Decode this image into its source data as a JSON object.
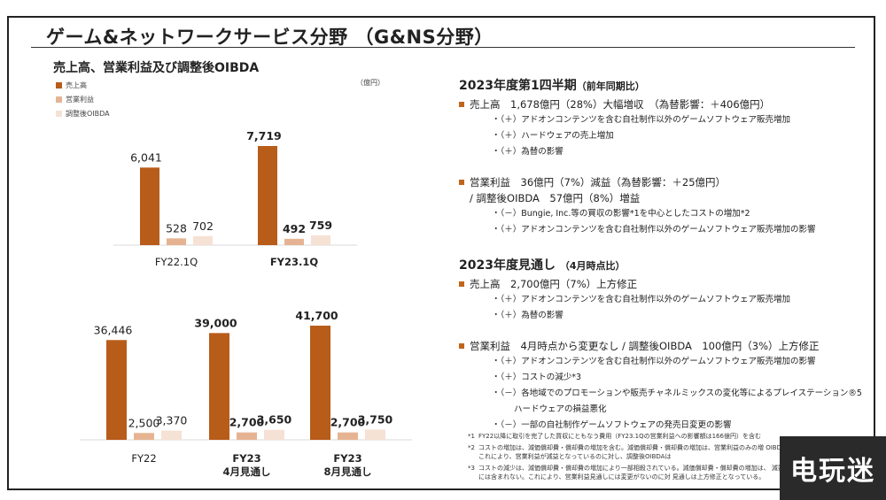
{
  "title": "ゲーム&ネットワークサービス分野 （G&NS分野）",
  "chart_title": "売上高、営業利益及び調整後OIBDA",
  "unit": "（億円）",
  "colors": {
    "sales": "#b85c1a",
    "op_income": "#e6b392",
    "oibda": "#f6e1d5",
    "bullet": "#c0651c"
  },
  "chart_data": [
    {
      "type": "bar",
      "categories": [
        "FY22.1Q",
        "FY23.1Q"
      ],
      "series": [
        {
          "name": "売上高",
          "values": [
            6041,
            7719
          ]
        },
        {
          "name": "営業利益",
          "values": [
            528,
            492
          ]
        },
        {
          "name": "調整後OIBDA",
          "values": [
            702,
            759
          ]
        }
      ],
      "data_labels": [
        [
          "6,041",
          "528",
          "702"
        ],
        [
          "7,719",
          "492",
          "759"
        ]
      ],
      "legend": "top-left",
      "grid": false
    },
    {
      "type": "bar",
      "categories": [
        "FY22",
        "FY23\n4月見通し",
        "FY23\n8月見通し"
      ],
      "category_lines": [
        [
          "FY22"
        ],
        [
          "FY23",
          "4月見通し"
        ],
        [
          "FY23",
          "8月見通し"
        ]
      ],
      "series": [
        {
          "name": "売上高",
          "values": [
            36446,
            39000,
            41700
          ]
        },
        {
          "name": "営業利益",
          "values": [
            2500,
            2700,
            2700
          ]
        },
        {
          "name": "調整後OIBDA",
          "values": [
            3370,
            3650,
            3750
          ]
        }
      ],
      "data_labels": [
        [
          "36,446",
          "2,500",
          "3,370"
        ],
        [
          "39,000",
          "2,700",
          "3,650"
        ],
        [
          "41,700",
          "2,700",
          "3,750"
        ]
      ],
      "grid": false
    }
  ],
  "q1": {
    "heading": "2023年度第1四半期",
    "heading_note": "（前年同期比）",
    "sales": "売上高　1,678億円（28%）大幅増収　（為替影響：＋406億円）",
    "sales_items": [
      "・（＋）アドオンコンテンツを含む自社制作以外のゲームソフトウェア販売増加",
      "・（＋）ハードウェアの売上増加",
      "・（＋）為替の影響"
    ],
    "op": "営業利益　36億円（7%）減益（為替影響：＋25億円）",
    "op_cont": "/ 調整後OIBDA　57億円（8%）増益",
    "op_items": [
      "・（－）Bungie, Inc.等の買収の影響*1を中心としたコストの増加*2",
      "・（＋）アドオンコンテンツを含む自社制作以外のゲームソフトウェア販売増加の影響"
    ]
  },
  "fy": {
    "heading": "2023年度見通し",
    "heading_note": "（4月時点比）",
    "sales": "売上高　2,700億円（7%）上方修正",
    "sales_items": [
      "・（＋）アドオンコンテンツを含む自社制作以外のゲームソフトウェア販売増加",
      "・（＋）為替の影響"
    ],
    "op": "営業利益　4月時点から変更なし / 調整後OIBDA　100億円（3%）上方修正",
    "op_items": [
      "・（＋）アドオンコンテンツを含む自社制作以外のゲームソフトウェア販売増加の影響",
      "・（＋）コストの減少*3",
      "・（－）各地域でのプロモーションや販売チャネルミックスの変化等によるプレイステーション®5",
      "・（－）一部の自社制作ゲームソフトウェアの発売日変更の影響"
    ],
    "op_items_cont": "ハードウェアの損益悪化"
  },
  "notes": [
    {
      "mark": "*1",
      "text": "FY22以降に取引を完了した買収にともなう費用（FY23.1Qの営業利益への影響額は166億円）を含む"
    },
    {
      "mark": "*2",
      "text": "コストの増加は、減価償却費・償却費の増加を含む。減価償却費・償却費の増加は、営業利益のみの増 OIBDAの増減要因には含まれない。これにより、営業利益が減益となっているのに対し、調整後OIBDAは"
    },
    {
      "mark": "*3",
      "text": "コストの減少は、減価償却費・償却費の増加により一部相殺されている。減価償却費・償却費の増加は、 減要因で調整後OIBDAの増減要因には含まれない。これにより、営業利益見通しには変更がないのに対 見通しは上方修正となっている。"
    }
  ],
  "watermark": "电玩迷"
}
